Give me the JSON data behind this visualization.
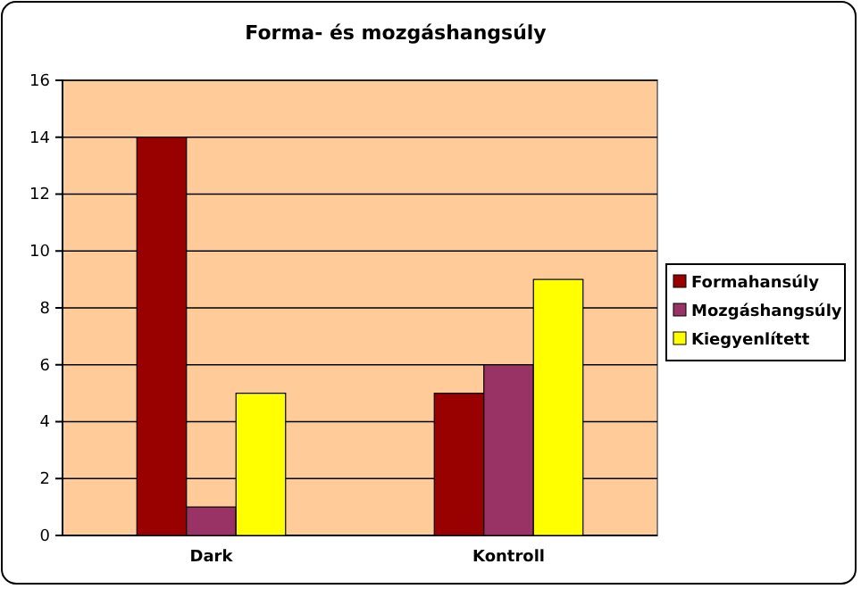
{
  "chart_data": {
    "type": "bar",
    "title": "Forma- és mozgáshangsúly",
    "categories": [
      "Dark",
      "Kontroll"
    ],
    "series": [
      {
        "name": "Formahansúly",
        "color": "#990000",
        "values": [
          14,
          5
        ]
      },
      {
        "name": "Mozgáshangsúly",
        "color": "#993366",
        "values": [
          1,
          6
        ]
      },
      {
        "name": "Kiegyenlített",
        "color": "#ffff00",
        "values": [
          5,
          9
        ]
      }
    ],
    "ylim": [
      0,
      16
    ],
    "yticks": [
      0,
      2,
      4,
      6,
      8,
      10,
      12,
      14,
      16
    ],
    "grid": "y",
    "legend": "right"
  }
}
